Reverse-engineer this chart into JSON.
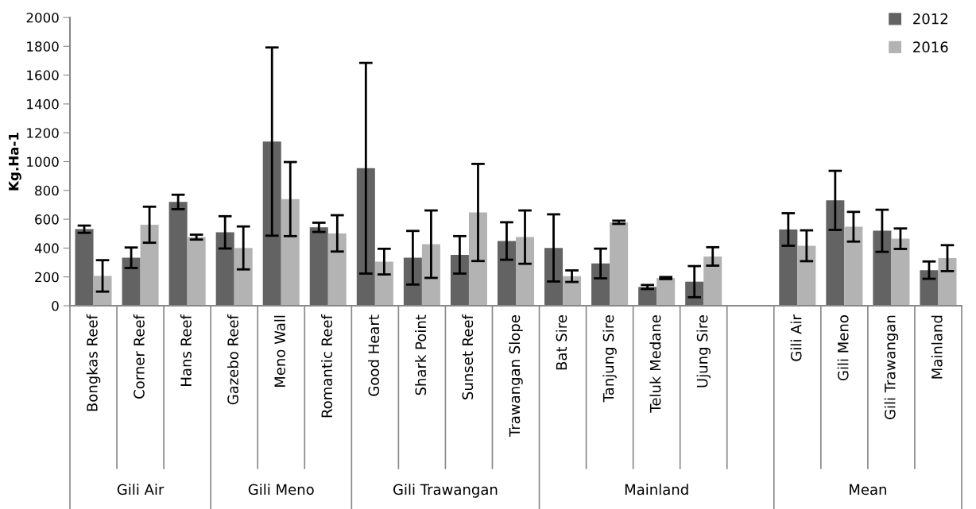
{
  "chart_data": {
    "type": "bar",
    "ylabel": "Kg.Ha-1",
    "categories": [
      "Bongkas Reef",
      "Corner Reef",
      "Hans Reef",
      "Gazebo Reef",
      "Meno Wall",
      "Romantic Reef",
      "Good Heart",
      "Shark Point",
      "Sunset Reef",
      "Trawangan Slope",
      "Bat Sire",
      "Tanjung Sire",
      "Teluk Medane",
      "Ujung Sire",
      null,
      "Gili Air",
      "Gili Meno",
      "Gili Trawangan",
      "Mainland"
    ],
    "series": [
      {
        "name": "2012",
        "color": "#636363",
        "values": [
          531,
          333,
          720,
          509,
          1139,
          544,
          954,
          333,
          353,
          449,
          401,
          293,
          130,
          167,
          null,
          529,
          731,
          520,
          247
        ],
        "errors": [
          25,
          71,
          50,
          112,
          653,
          32,
          731,
          186,
          130,
          130,
          233,
          103,
          14,
          108,
          null,
          113,
          205,
          146,
          60
        ]
      },
      {
        "name": "2016",
        "color": "#b3b3b3",
        "values": [
          207,
          562,
          476,
          401,
          740,
          502,
          306,
          427,
          647,
          476,
          205,
          579,
          192,
          342,
          null,
          416,
          548,
          465,
          330
        ],
        "errors": [
          109,
          125,
          17,
          149,
          257,
          126,
          89,
          234,
          337,
          185,
          40,
          11,
          7,
          64,
          null,
          107,
          103,
          71,
          90
        ]
      }
    ],
    "ylim": [
      0,
      2000
    ],
    "yticks": [
      0,
      200,
      400,
      600,
      800,
      1000,
      1200,
      1400,
      1600,
      1800,
      2000
    ],
    "grid": false,
    "legend": "top right",
    "annotations": [
      "Gili Air",
      "Gili Meno",
      "Gili Trawangan",
      "Mainland",
      "Mean"
    ]
  }
}
